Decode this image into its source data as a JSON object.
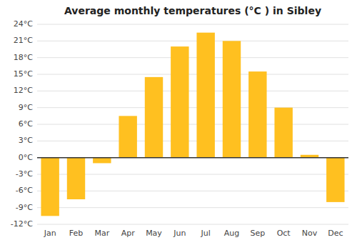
{
  "chart_data": {
    "type": "bar",
    "title": "Average monthly temperatures (°C ) in Sibley",
    "categories": [
      "Jan",
      "Feb",
      "Mar",
      "Apr",
      "May",
      "Jun",
      "Jul",
      "Aug",
      "Sep",
      "Oct",
      "Nov",
      "Dec"
    ],
    "values": [
      -10.5,
      -7.5,
      -1.0,
      7.5,
      14.5,
      20.0,
      22.5,
      21.0,
      15.5,
      9.0,
      0.5,
      -8.0
    ],
    "color": "#FFC020",
    "ylim": [
      -12,
      24
    ],
    "yticks": [
      {
        "value": -12,
        "label": "-12°C"
      },
      {
        "value": -9,
        "label": "-9°C"
      },
      {
        "value": -6,
        "label": "-6°C"
      },
      {
        "value": -3,
        "label": "-3°C"
      },
      {
        "value": 0,
        "label": "0°C"
      },
      {
        "value": 3,
        "label": "3°C"
      },
      {
        "value": 6,
        "label": "6°C"
      },
      {
        "value": 9,
        "label": "9°C"
      },
      {
        "value": 12,
        "label": "12°C"
      },
      {
        "value": 15,
        "label": "15°C"
      },
      {
        "value": 18,
        "label": "18°C"
      },
      {
        "value": 21,
        "label": "21°C"
      },
      {
        "value": 24,
        "label": "24°C"
      }
    ],
    "grid": true
  }
}
